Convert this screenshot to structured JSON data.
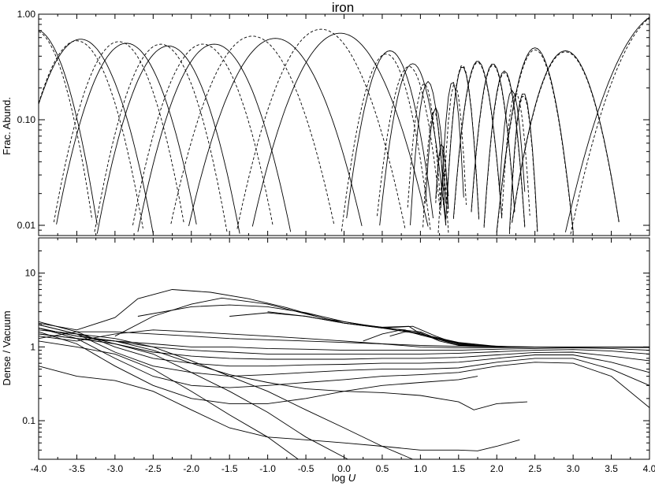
{
  "chart_data": [
    {
      "panel": "top",
      "type": "line",
      "title": "iron",
      "xlabel": "",
      "ylabel": "Frac. Abund.",
      "xlim": [
        -4.0,
        4.0
      ],
      "ylim": [
        0.008,
        1.0
      ],
      "yscale": "log",
      "yticks": [
        "0.01",
        "0.10",
        "1.00"
      ],
      "grid": false,
      "line_styles": [
        "solid",
        "dashed"
      ],
      "series": [
        {
          "style": "solid",
          "peak_x": -4.05,
          "peak_y": 0.72,
          "width": 0.6
        },
        {
          "style": "dashed",
          "peak_x": -4.05,
          "peak_y": 0.7,
          "width": 0.56
        },
        {
          "style": "solid",
          "peak_x": -3.45,
          "peak_y": 0.58,
          "width": 0.7
        },
        {
          "style": "dashed",
          "peak_x": -3.5,
          "peak_y": 0.56,
          "width": 0.65
        },
        {
          "style": "solid",
          "peak_x": -2.85,
          "peak_y": 0.53,
          "width": 0.7
        },
        {
          "style": "dashed",
          "peak_x": -2.95,
          "peak_y": 0.55,
          "width": 0.65
        },
        {
          "style": "solid",
          "peak_x": -2.3,
          "peak_y": 0.5,
          "width": 0.7
        },
        {
          "style": "dashed",
          "peak_x": -2.4,
          "peak_y": 0.52,
          "width": 0.65
        },
        {
          "style": "solid",
          "peak_x": -1.7,
          "peak_y": 0.52,
          "width": 0.75
        },
        {
          "style": "dashed",
          "peak_x": -1.85,
          "peak_y": 0.52,
          "width": 0.7
        },
        {
          "style": "solid",
          "peak_x": -0.9,
          "peak_y": 0.59,
          "width": 0.85
        },
        {
          "style": "dashed",
          "peak_x": -1.2,
          "peak_y": 0.62,
          "width": 0.8
        },
        {
          "style": "solid",
          "peak_x": -0.05,
          "peak_y": 0.66,
          "width": 0.85
        },
        {
          "style": "dashed",
          "peak_x": -0.3,
          "peak_y": 0.72,
          "width": 0.8
        },
        {
          "style": "solid",
          "peak_x": 0.6,
          "peak_y": 0.45,
          "width": 0.45
        },
        {
          "style": "dashed",
          "peak_x": 0.55,
          "peak_y": 0.42,
          "width": 0.45
        },
        {
          "style": "solid",
          "peak_x": 0.9,
          "peak_y": 0.34,
          "width": 0.35
        },
        {
          "style": "dashed",
          "peak_x": 0.85,
          "peak_y": 0.32,
          "width": 0.35
        },
        {
          "style": "solid",
          "peak_x": 1.1,
          "peak_y": 0.23,
          "width": 0.2
        },
        {
          "style": "dashed",
          "peak_x": 1.05,
          "peak_y": 0.22,
          "width": 0.2
        },
        {
          "style": "solid",
          "peak_x": 1.2,
          "peak_y": 0.13,
          "width": 0.14
        },
        {
          "style": "dashed",
          "peak_x": 1.18,
          "peak_y": 0.12,
          "width": 0.14
        },
        {
          "style": "solid",
          "peak_x": 1.28,
          "peak_y": 0.06,
          "width": 0.11
        },
        {
          "style": "dashed",
          "peak_x": 1.28,
          "peak_y": 0.055,
          "width": 0.11
        },
        {
          "style": "solid",
          "peak_x": 1.32,
          "peak_y": 0.035,
          "width": 0.09
        },
        {
          "style": "dashed",
          "peak_x": 1.3,
          "peak_y": 0.03,
          "width": 0.09
        },
        {
          "style": "solid",
          "peak_x": 1.42,
          "peak_y": 0.23,
          "width": 0.14
        },
        {
          "style": "dashed",
          "peak_x": 1.45,
          "peak_y": 0.22,
          "width": 0.14
        },
        {
          "style": "solid",
          "peak_x": 1.55,
          "peak_y": 0.32,
          "width": 0.18
        },
        {
          "style": "dashed",
          "peak_x": 1.55,
          "peak_y": 0.33,
          "width": 0.18
        },
        {
          "style": "solid",
          "peak_x": 1.75,
          "peak_y": 0.36,
          "width": 0.26
        },
        {
          "style": "dashed",
          "peak_x": 1.75,
          "peak_y": 0.35,
          "width": 0.26
        },
        {
          "style": "solid",
          "peak_x": 1.95,
          "peak_y": 0.34,
          "width": 0.24
        },
        {
          "style": "dashed",
          "peak_x": 1.95,
          "peak_y": 0.33,
          "width": 0.24
        },
        {
          "style": "solid",
          "peak_x": 2.1,
          "peak_y": 0.29,
          "width": 0.22
        },
        {
          "style": "dashed",
          "peak_x": 2.1,
          "peak_y": 0.28,
          "width": 0.22
        },
        {
          "style": "solid",
          "peak_x": 2.2,
          "peak_y": 0.19,
          "width": 0.17
        },
        {
          "style": "dashed",
          "peak_x": 2.25,
          "peak_y": 0.18,
          "width": 0.17
        },
        {
          "style": "solid",
          "peak_x": 2.35,
          "peak_y": 0.18,
          "width": 0.16
        },
        {
          "style": "dashed",
          "peak_x": 2.35,
          "peak_y": 0.17,
          "width": 0.16
        },
        {
          "style": "solid",
          "peak_x": 2.5,
          "peak_y": 0.48,
          "width": 0.38
        },
        {
          "style": "dashed",
          "peak_x": 2.5,
          "peak_y": 0.46,
          "width": 0.38
        },
        {
          "style": "solid",
          "peak_x": 2.9,
          "peak_y": 0.45,
          "width": 0.55
        },
        {
          "style": "dashed",
          "peak_x": 2.9,
          "peak_y": 0.44,
          "width": 0.55
        },
        {
          "style": "solid",
          "peak_x": 4.2,
          "peak_y": 1.05,
          "width": 0.9
        },
        {
          "style": "dashed",
          "peak_x": 4.2,
          "peak_y": 1.05,
          "width": 0.85
        }
      ]
    },
    {
      "panel": "bottom",
      "type": "line",
      "title": "",
      "xlabel": "log U",
      "ylabel": "Dense / Vacuum",
      "xlim": [
        -4.0,
        4.0
      ],
      "ylim": [
        0.03,
        30
      ],
      "yscale": "log",
      "xticks": [
        "-4.0",
        "-3.5",
        "-3.0",
        "-2.5",
        "-2.0",
        "-1.5",
        "-1.0",
        "-0.5",
        "0.0",
        "0.5",
        "1.0",
        "1.5",
        "2.0",
        "2.5",
        "3.0",
        "3.5",
        "4.0"
      ],
      "yticks": [
        "0.1",
        "1",
        "10"
      ],
      "grid": false,
      "series": [
        {
          "x": [
            -4.0,
            -3.5,
            -3.0,
            -2.5,
            -2.0,
            -1.5,
            -1.0,
            -0.5,
            0.0,
            0.5,
            1.0,
            1.5,
            2.0,
            2.5,
            3.0,
            3.5,
            4.0
          ],
          "y": [
            1.3,
            1.6,
            1.6,
            1.5,
            1.4,
            1.3,
            1.25,
            1.2,
            1.15,
            1.1,
            1.05,
            1.02,
            1.0,
            1.0,
            1.0,
            1.0,
            1.0
          ]
        },
        {
          "x": [
            -4.0,
            -3.5,
            -3.0,
            -2.5,
            -2.0,
            -1.5,
            -1.0,
            -0.5,
            0.0,
            0.5,
            1.0,
            1.5,
            2.0,
            2.5,
            3.0,
            3.5,
            4.0
          ],
          "y": [
            1.4,
            1.2,
            1.5,
            1.7,
            1.6,
            1.5,
            1.4,
            1.3,
            1.2,
            1.1,
            1.0,
            0.97,
            0.98,
            0.99,
            0.99,
            0.99,
            0.98
          ]
        },
        {
          "x": [
            -4.0,
            -3.5,
            -3.0,
            -2.5,
            -2.0,
            -1.5,
            -1.0,
            -0.5,
            0.0,
            0.5,
            1.0,
            1.5,
            2.0,
            2.5,
            3.0,
            3.5,
            4.0
          ],
          "y": [
            1.5,
            1.3,
            1.2,
            1.1,
            1.0,
            1.0,
            0.95,
            0.93,
            0.9,
            0.9,
            0.9,
            0.9,
            0.93,
            0.95,
            0.97,
            0.95,
            0.9
          ]
        },
        {
          "x": [
            -4.0,
            -3.5,
            -3.0,
            -2.5,
            -2.0,
            -1.5,
            -1.0,
            -0.5,
            0.0,
            0.5,
            1.0,
            1.5,
            2.0,
            2.5,
            3.0,
            3.5,
            4.0
          ],
          "y": [
            1.8,
            1.4,
            1.2,
            1.0,
            0.9,
            0.85,
            0.8,
            0.8,
            0.8,
            0.8,
            0.8,
            0.82,
            0.86,
            0.9,
            0.92,
            0.88,
            0.8
          ]
        },
        {
          "x": [
            -4.0,
            -3.5,
            -3.0,
            -2.5,
            -2.0,
            -1.5,
            -1.0,
            -0.5,
            0.0,
            0.5,
            1.0,
            1.5,
            2.0,
            2.5,
            3.0,
            3.5,
            4.0
          ],
          "y": [
            2.0,
            1.5,
            1.1,
            0.85,
            0.75,
            0.7,
            0.68,
            0.68,
            0.68,
            0.7,
            0.7,
            0.72,
            0.78,
            0.84,
            0.85,
            0.75,
            0.65
          ]
        },
        {
          "x": [
            -4.0,
            -3.5,
            -3.0,
            -2.5,
            -2.0,
            -1.5,
            -1.0,
            -0.5,
            0.0,
            0.5,
            1.0,
            1.5,
            2.0,
            2.5,
            3.0,
            3.5,
            4.0
          ],
          "y": [
            2.2,
            1.6,
            1.0,
            0.7,
            0.6,
            0.55,
            0.55,
            0.57,
            0.58,
            0.6,
            0.6,
            0.62,
            0.7,
            0.78,
            0.78,
            0.62,
            0.45
          ]
        },
        {
          "x": [
            -4.0,
            -3.5,
            -3.0,
            -2.5,
            -2.0,
            -1.5,
            -1.0,
            -0.5,
            0.0,
            0.5,
            1.0,
            1.5,
            2.0,
            2.5,
            3.0,
            3.5,
            4.0
          ],
          "y": [
            2.0,
            1.5,
            0.85,
            0.55,
            0.45,
            0.4,
            0.42,
            0.45,
            0.48,
            0.5,
            0.5,
            0.52,
            0.62,
            0.7,
            0.7,
            0.5,
            0.3
          ]
        },
        {
          "x": [
            -4.0,
            -3.5,
            -3.0,
            -2.5,
            -2.0,
            -1.5,
            -1.0,
            -0.5,
            0.0,
            0.5,
            1.0,
            1.5,
            2.0,
            2.5,
            3.0,
            3.5,
            4.0
          ],
          "y": [
            1.8,
            1.3,
            0.7,
            0.4,
            0.3,
            0.28,
            0.3,
            0.33,
            0.36,
            0.4,
            0.42,
            0.45,
            0.55,
            0.62,
            0.6,
            0.4,
            0.15
          ]
        },
        {
          "x": [
            -4.0,
            -3.5,
            -3.0,
            -2.5,
            -2.0,
            -1.5,
            -1.0,
            -0.5,
            0.0,
            0.5,
            1.0,
            1.5,
            1.75
          ],
          "y": [
            1.6,
            1.1,
            0.55,
            0.3,
            0.2,
            0.17,
            0.17,
            0.2,
            0.25,
            0.3,
            0.33,
            0.36,
            0.4
          ]
        },
        {
          "x": [
            -4.0,
            -3.5,
            -3.0,
            -2.5,
            -2.0,
            -1.5,
            -1.0,
            -0.5,
            0.0,
            0.5,
            1.0,
            1.5,
            1.75,
            2.0,
            2.3
          ],
          "y": [
            0.55,
            0.4,
            0.35,
            0.25,
            0.14,
            0.08,
            0.06,
            0.055,
            0.05,
            0.045,
            0.04,
            0.04,
            0.039,
            0.045,
            0.055
          ]
        },
        {
          "x": [
            -4.0,
            -3.5,
            -3.0,
            -2.5,
            -2.0,
            -1.5,
            -1.0,
            -0.5,
            0.0,
            0.5,
            1.0,
            1.5,
            1.7,
            2.0,
            2.4
          ],
          "y": [
            1.8,
            1.4,
            1.2,
            0.9,
            0.6,
            0.42,
            0.33,
            0.27,
            0.25,
            0.24,
            0.22,
            0.18,
            0.14,
            0.17,
            0.18
          ]
        },
        {
          "x": [
            -4.0,
            -3.5,
            -3.0,
            -2.5,
            -2.0,
            -1.5,
            -1.0,
            -0.6
          ],
          "y": [
            1.2,
            1.0,
            0.8,
            0.5,
            0.25,
            0.12,
            0.06,
            0.03
          ]
        },
        {
          "x": [
            -4.0,
            -3.5,
            -3.0,
            -2.5,
            -2.0,
            -1.5,
            -1.0,
            -0.5,
            0.0,
            0.05
          ],
          "y": [
            1.5,
            1.3,
            1.1,
            0.8,
            0.45,
            0.25,
            0.13,
            0.06,
            0.032,
            0.03
          ]
        },
        {
          "x": [
            -4.0,
            -3.5,
            -3.0,
            -2.5,
            -2.0,
            -1.5,
            -1.0,
            -0.5,
            0.0,
            0.5,
            0.9
          ],
          "y": [
            1.7,
            1.5,
            1.3,
            1.0,
            0.65,
            0.4,
            0.25,
            0.14,
            0.08,
            0.045,
            0.03
          ]
        },
        {
          "x": [
            -4.0,
            -3.5,
            -3.0,
            -2.7,
            -2.25,
            -1.75,
            -1.25,
            -0.75,
            -0.25,
            0.25,
            0.75,
            1.25,
            1.75,
            2.25,
            2.75,
            3.25,
            3.75,
            4.0
          ],
          "y": [
            2.1,
            1.7,
            2.5,
            4.5,
            6.0,
            5.5,
            4.5,
            3.4,
            2.4,
            2.0,
            1.7,
            1.25,
            1.05,
            1.0,
            1.0,
            1.0,
            1.0,
            1.0
          ]
        },
        {
          "x": [
            -3.0,
            -2.5,
            -2.0,
            -1.6,
            -1.0,
            -0.5,
            0.0,
            0.5,
            1.0,
            1.5,
            2.0,
            2.5,
            3.0,
            3.5,
            4.0
          ],
          "y": [
            1.4,
            2.6,
            3.8,
            4.6,
            3.8,
            2.8,
            2.1,
            1.8,
            1.5,
            1.15,
            1.02,
            1.0,
            1.0,
            1.0,
            0.99
          ]
        },
        {
          "x": [
            -2.7,
            -2.0,
            -1.5,
            -1.0,
            -0.5,
            0.0,
            0.5,
            0.8,
            1.0,
            1.5,
            2.0,
            2.5,
            3.0,
            3.5,
            4.0
          ],
          "y": [
            2.6,
            3.5,
            3.7,
            3.5,
            2.9,
            2.2,
            1.8,
            1.7,
            1.45,
            1.1,
            1.0,
            1.0,
            1.0,
            1.0,
            1.0
          ]
        },
        {
          "x": [
            -1.5,
            -1.0,
            -0.5,
            0.0,
            0.5,
            0.85,
            1.0,
            1.5,
            2.0,
            2.5,
            3.0,
            3.5,
            4.0
          ],
          "y": [
            2.6,
            2.9,
            2.6,
            2.1,
            1.85,
            1.9,
            1.5,
            1.12,
            1.01,
            1.0,
            1.0,
            1.0,
            1.0
          ]
        },
        {
          "x": [
            -1.0,
            -0.5,
            0.0,
            0.5,
            0.9,
            1.2,
            1.5,
            2.0,
            2.5,
            3.0,
            3.5,
            4.0
          ],
          "y": [
            3.0,
            2.6,
            2.1,
            1.8,
            1.9,
            1.4,
            1.08,
            1.0,
            1.0,
            1.0,
            1.0,
            1.0
          ]
        },
        {
          "x": [
            0.25,
            0.5,
            0.75,
            1.0,
            1.25,
            1.5,
            2.0,
            2.5,
            3.0,
            3.5,
            4.0
          ],
          "y": [
            1.2,
            1.5,
            1.7,
            1.6,
            1.25,
            1.06,
            1.0,
            1.0,
            1.0,
            1.0,
            1.0
          ]
        },
        {
          "x": [
            0.6,
            0.8,
            1.0,
            1.25,
            1.5,
            2.0,
            2.5,
            3.0,
            3.5,
            4.0
          ],
          "y": [
            1.4,
            1.6,
            1.55,
            1.2,
            1.05,
            1.0,
            1.0,
            1.0,
            1.0,
            1.0
          ]
        }
      ]
    }
  ]
}
